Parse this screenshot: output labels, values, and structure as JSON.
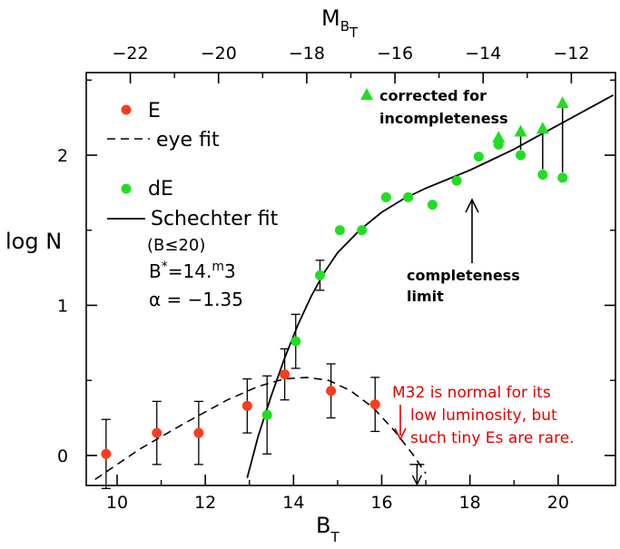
{
  "chart_data": {
    "type": "scatter",
    "xlabel": "B",
    "xlabel_sub": "T",
    "ylabel": "log N",
    "top_axis_label": "M",
    "top_axis_sub": "B",
    "top_axis_subsub": "T",
    "xlim": [
      9.3,
      21.3
    ],
    "ylim": [
      -0.2,
      2.55
    ],
    "x_ticks": [
      10,
      12,
      14,
      16,
      18,
      20
    ],
    "x_tick_labels": [
      "10",
      "12",
      "14",
      "16",
      "18",
      "20"
    ],
    "y_ticks": [
      0,
      1,
      2
    ],
    "y_tick_labels": [
      "0",
      "1",
      "2"
    ],
    "top_ticks": [
      10.3,
      12.3,
      14.3,
      16.3,
      18.3,
      20.3
    ],
    "top_tick_labels": [
      "−22",
      "−20",
      "−18",
      "−16",
      "−14",
      "−12"
    ],
    "series": [
      {
        "name": "E",
        "color": "#ff3b1f",
        "points": [
          {
            "x": 9.75,
            "y": 0.01,
            "err": 0.23
          },
          {
            "x": 10.9,
            "y": 0.15,
            "err": 0.21
          },
          {
            "x": 11.85,
            "y": 0.15,
            "err": 0.21
          },
          {
            "x": 12.95,
            "y": 0.33,
            "err": 0.18
          },
          {
            "x": 13.8,
            "y": 0.54,
            "err": 0.17
          },
          {
            "x": 14.85,
            "y": 0.43,
            "err": 0.18
          },
          {
            "x": 15.85,
            "y": 0.34,
            "err": 0.18
          }
        ]
      },
      {
        "name": "dE",
        "color": "#22dd22",
        "points": [
          {
            "x": 13.4,
            "y": 0.27,
            "err": 0.26
          },
          {
            "x": 14.05,
            "y": 0.76,
            "err": 0.18
          },
          {
            "x": 14.6,
            "y": 1.2,
            "err": 0.1
          },
          {
            "x": 15.05,
            "y": 1.5
          },
          {
            "x": 15.55,
            "y": 1.5
          },
          {
            "x": 16.1,
            "y": 1.72
          },
          {
            "x": 16.6,
            "y": 1.72
          },
          {
            "x": 17.15,
            "y": 1.67
          },
          {
            "x": 17.7,
            "y": 1.83
          },
          {
            "x": 18.2,
            "y": 1.99
          },
          {
            "x": 18.65,
            "y": 2.07
          },
          {
            "x": 19.15,
            "y": 2.0
          },
          {
            "x": 19.65,
            "y": 1.87
          },
          {
            "x": 20.1,
            "y": 1.85
          }
        ]
      },
      {
        "name": "corrected for incompleteness",
        "color": "#22dd22",
        "marker": "triangle",
        "points": [
          {
            "x": 18.65,
            "y": 2.12,
            "from": 2.07
          },
          {
            "x": 19.15,
            "y": 2.16,
            "from": 2.0
          },
          {
            "x": 19.65,
            "y": 2.18,
            "from": 1.87
          },
          {
            "x": 20.1,
            "y": 2.35,
            "from": 1.85
          }
        ]
      }
    ],
    "upper_limit": {
      "x": 16.8,
      "y": -0.06
    },
    "eye_fit": {
      "points": [
        [
          9.5,
          -0.16
        ],
        [
          10.5,
          0.04
        ],
        [
          11.5,
          0.21
        ],
        [
          12.5,
          0.37
        ],
        [
          13.2,
          0.46
        ],
        [
          13.8,
          0.51
        ],
        [
          14.3,
          0.52
        ],
        [
          14.8,
          0.5
        ],
        [
          15.3,
          0.43
        ],
        [
          15.8,
          0.32
        ],
        [
          16.3,
          0.16
        ],
        [
          16.7,
          0.01
        ],
        [
          17.0,
          -0.12
        ]
      ]
    },
    "schechter_fit": {
      "points": [
        [
          12.95,
          -0.15
        ],
        [
          13.2,
          0.13
        ],
        [
          13.5,
          0.4
        ],
        [
          13.8,
          0.65
        ],
        [
          14.1,
          0.87
        ],
        [
          14.4,
          1.06
        ],
        [
          14.7,
          1.22
        ],
        [
          15.0,
          1.35
        ],
        [
          15.5,
          1.5
        ],
        [
          16.0,
          1.62
        ],
        [
          16.5,
          1.71
        ],
        [
          17.0,
          1.78
        ],
        [
          17.5,
          1.84
        ],
        [
          18.0,
          1.9
        ],
        [
          18.5,
          1.97
        ],
        [
          19.0,
          2.04
        ],
        [
          19.5,
          2.12
        ],
        [
          20.0,
          2.2
        ],
        [
          20.5,
          2.28
        ],
        [
          21.0,
          2.36
        ],
        [
          21.25,
          2.4
        ]
      ]
    },
    "legend": {
      "e_label": "E",
      "eye_fit_label": "eye fit",
      "de_label": "dE",
      "schechter_label": "Schechter fit",
      "schechter_cond": "(B≤20)",
      "bstar_base": "B",
      "bstar_sup": "*",
      "bstar_eq": "=14.",
      "bstar_m": "m",
      "bstar_tail": "3",
      "alpha_eq": "α = −1.35"
    },
    "annotations": {
      "corrected_line1": "corrected for",
      "corrected_line2": "incompleteness",
      "completeness_line1": "completeness",
      "completeness_line2": "limit",
      "note_line1": "M32 is normal for its",
      "note_line2": "low luminosity, but",
      "note_line3": "such tiny Es are rare."
    }
  }
}
